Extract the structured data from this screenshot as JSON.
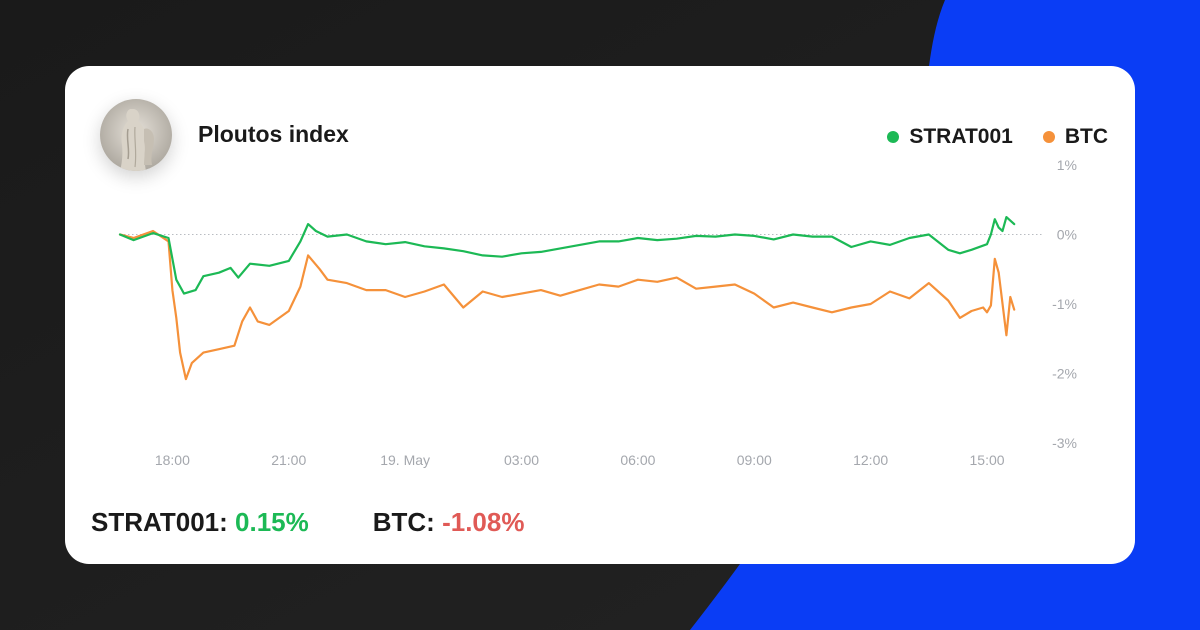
{
  "header": {
    "title": "Ploutos index"
  },
  "avatar": {
    "description_icon": "statue-avatar-icon"
  },
  "legend": [
    {
      "label": "STRAT001",
      "color": "#1cb955"
    },
    {
      "label": "BTC",
      "color": "#f5913a"
    }
  ],
  "summary": {
    "strat_label": "STRAT001:",
    "strat_value": "0.15%",
    "strat_color": "#1cb955",
    "btc_label": "BTC:",
    "btc_value": "-1.08%",
    "btc_color": "#e05a56"
  },
  "chart_data": {
    "type": "line",
    "title": "Ploutos index",
    "xlabel": "",
    "ylabel": "",
    "ylim": [
      -3,
      1
    ],
    "y_ticks": [
      "1%",
      "0%",
      "-1%",
      "-2%",
      "-3%"
    ],
    "x_ticks": [
      "18:00",
      "21:00",
      "19. May",
      "03:00",
      "06:00",
      "09:00",
      "12:00",
      "15:00"
    ],
    "x_tick_hours": [
      18,
      21,
      24,
      27,
      30,
      33,
      36,
      39
    ],
    "grid": {
      "zero_line": true
    },
    "series": [
      {
        "name": "STRAT001",
        "color": "#1cb955",
        "x": [
          16.65,
          17.0,
          17.5,
          17.9,
          18.0,
          18.1,
          18.3,
          18.6,
          18.8,
          19.2,
          19.5,
          19.7,
          20.0,
          20.5,
          21.0,
          21.3,
          21.5,
          21.7,
          22.0,
          22.5,
          23.0,
          23.5,
          24.0,
          24.5,
          25.0,
          25.5,
          26.0,
          26.5,
          27.0,
          27.5,
          28.0,
          28.5,
          29.0,
          29.5,
          30.0,
          30.5,
          31.0,
          31.5,
          32.0,
          32.5,
          33.0,
          33.5,
          34.0,
          34.5,
          35.0,
          35.5,
          36.0,
          36.5,
          37.0,
          37.5,
          38.0,
          38.3,
          38.6,
          39.0,
          39.1,
          39.2,
          39.3,
          39.4,
          39.5,
          39.7
        ],
        "y": [
          0.0,
          -0.08,
          0.02,
          -0.05,
          -0.35,
          -0.65,
          -0.85,
          -0.8,
          -0.6,
          -0.55,
          -0.48,
          -0.62,
          -0.42,
          -0.45,
          -0.38,
          -0.1,
          0.15,
          0.05,
          -0.03,
          0.0,
          -0.1,
          -0.14,
          -0.11,
          -0.17,
          -0.2,
          -0.24,
          -0.3,
          -0.32,
          -0.27,
          -0.25,
          -0.2,
          -0.15,
          -0.1,
          -0.1,
          -0.05,
          -0.08,
          -0.06,
          -0.02,
          -0.03,
          0.0,
          -0.02,
          -0.07,
          0.0,
          -0.03,
          -0.03,
          -0.18,
          -0.1,
          -0.15,
          -0.05,
          0.0,
          -0.22,
          -0.27,
          -0.22,
          -0.14,
          0.0,
          0.22,
          0.1,
          0.05,
          0.25,
          0.15
        ]
      },
      {
        "name": "BTC",
        "color": "#f5913a",
        "x": [
          16.65,
          17.0,
          17.5,
          17.9,
          18.0,
          18.1,
          18.2,
          18.35,
          18.5,
          18.8,
          19.2,
          19.6,
          19.8,
          20.0,
          20.2,
          20.5,
          21.0,
          21.3,
          21.5,
          21.8,
          22.0,
          22.5,
          23.0,
          23.5,
          24.0,
          24.5,
          25.0,
          25.5,
          26.0,
          26.5,
          27.0,
          27.5,
          28.0,
          28.5,
          29.0,
          29.5,
          30.0,
          30.5,
          31.0,
          31.5,
          32.0,
          32.5,
          33.0,
          33.5,
          34.0,
          34.5,
          35.0,
          35.5,
          36.0,
          36.5,
          37.0,
          37.5,
          38.0,
          38.3,
          38.6,
          38.9,
          39.0,
          39.1,
          39.2,
          39.3,
          39.5,
          39.6,
          39.7
        ],
        "y": [
          0.0,
          -0.05,
          0.05,
          -0.1,
          -0.8,
          -1.2,
          -1.7,
          -2.08,
          -1.85,
          -1.7,
          -1.65,
          -1.6,
          -1.25,
          -1.05,
          -1.25,
          -1.3,
          -1.1,
          -0.75,
          -0.3,
          -0.5,
          -0.65,
          -0.7,
          -0.8,
          -0.8,
          -0.9,
          -0.82,
          -0.72,
          -1.05,
          -0.82,
          -0.9,
          -0.85,
          -0.8,
          -0.88,
          -0.8,
          -0.72,
          -0.75,
          -0.65,
          -0.68,
          -0.62,
          -0.78,
          -0.75,
          -0.72,
          -0.85,
          -1.05,
          -0.98,
          -1.05,
          -1.12,
          -1.05,
          -1.0,
          -0.82,
          -0.92,
          -0.7,
          -0.95,
          -1.2,
          -1.1,
          -1.05,
          -1.12,
          -1.02,
          -0.35,
          -0.55,
          -1.45,
          -0.9,
          -1.08
        ]
      }
    ]
  },
  "colors": {
    "accent_blue": "#0a3df5",
    "background": "#1c1c1c",
    "card": "#ffffff",
    "tick_text": "#a4a7ad"
  }
}
